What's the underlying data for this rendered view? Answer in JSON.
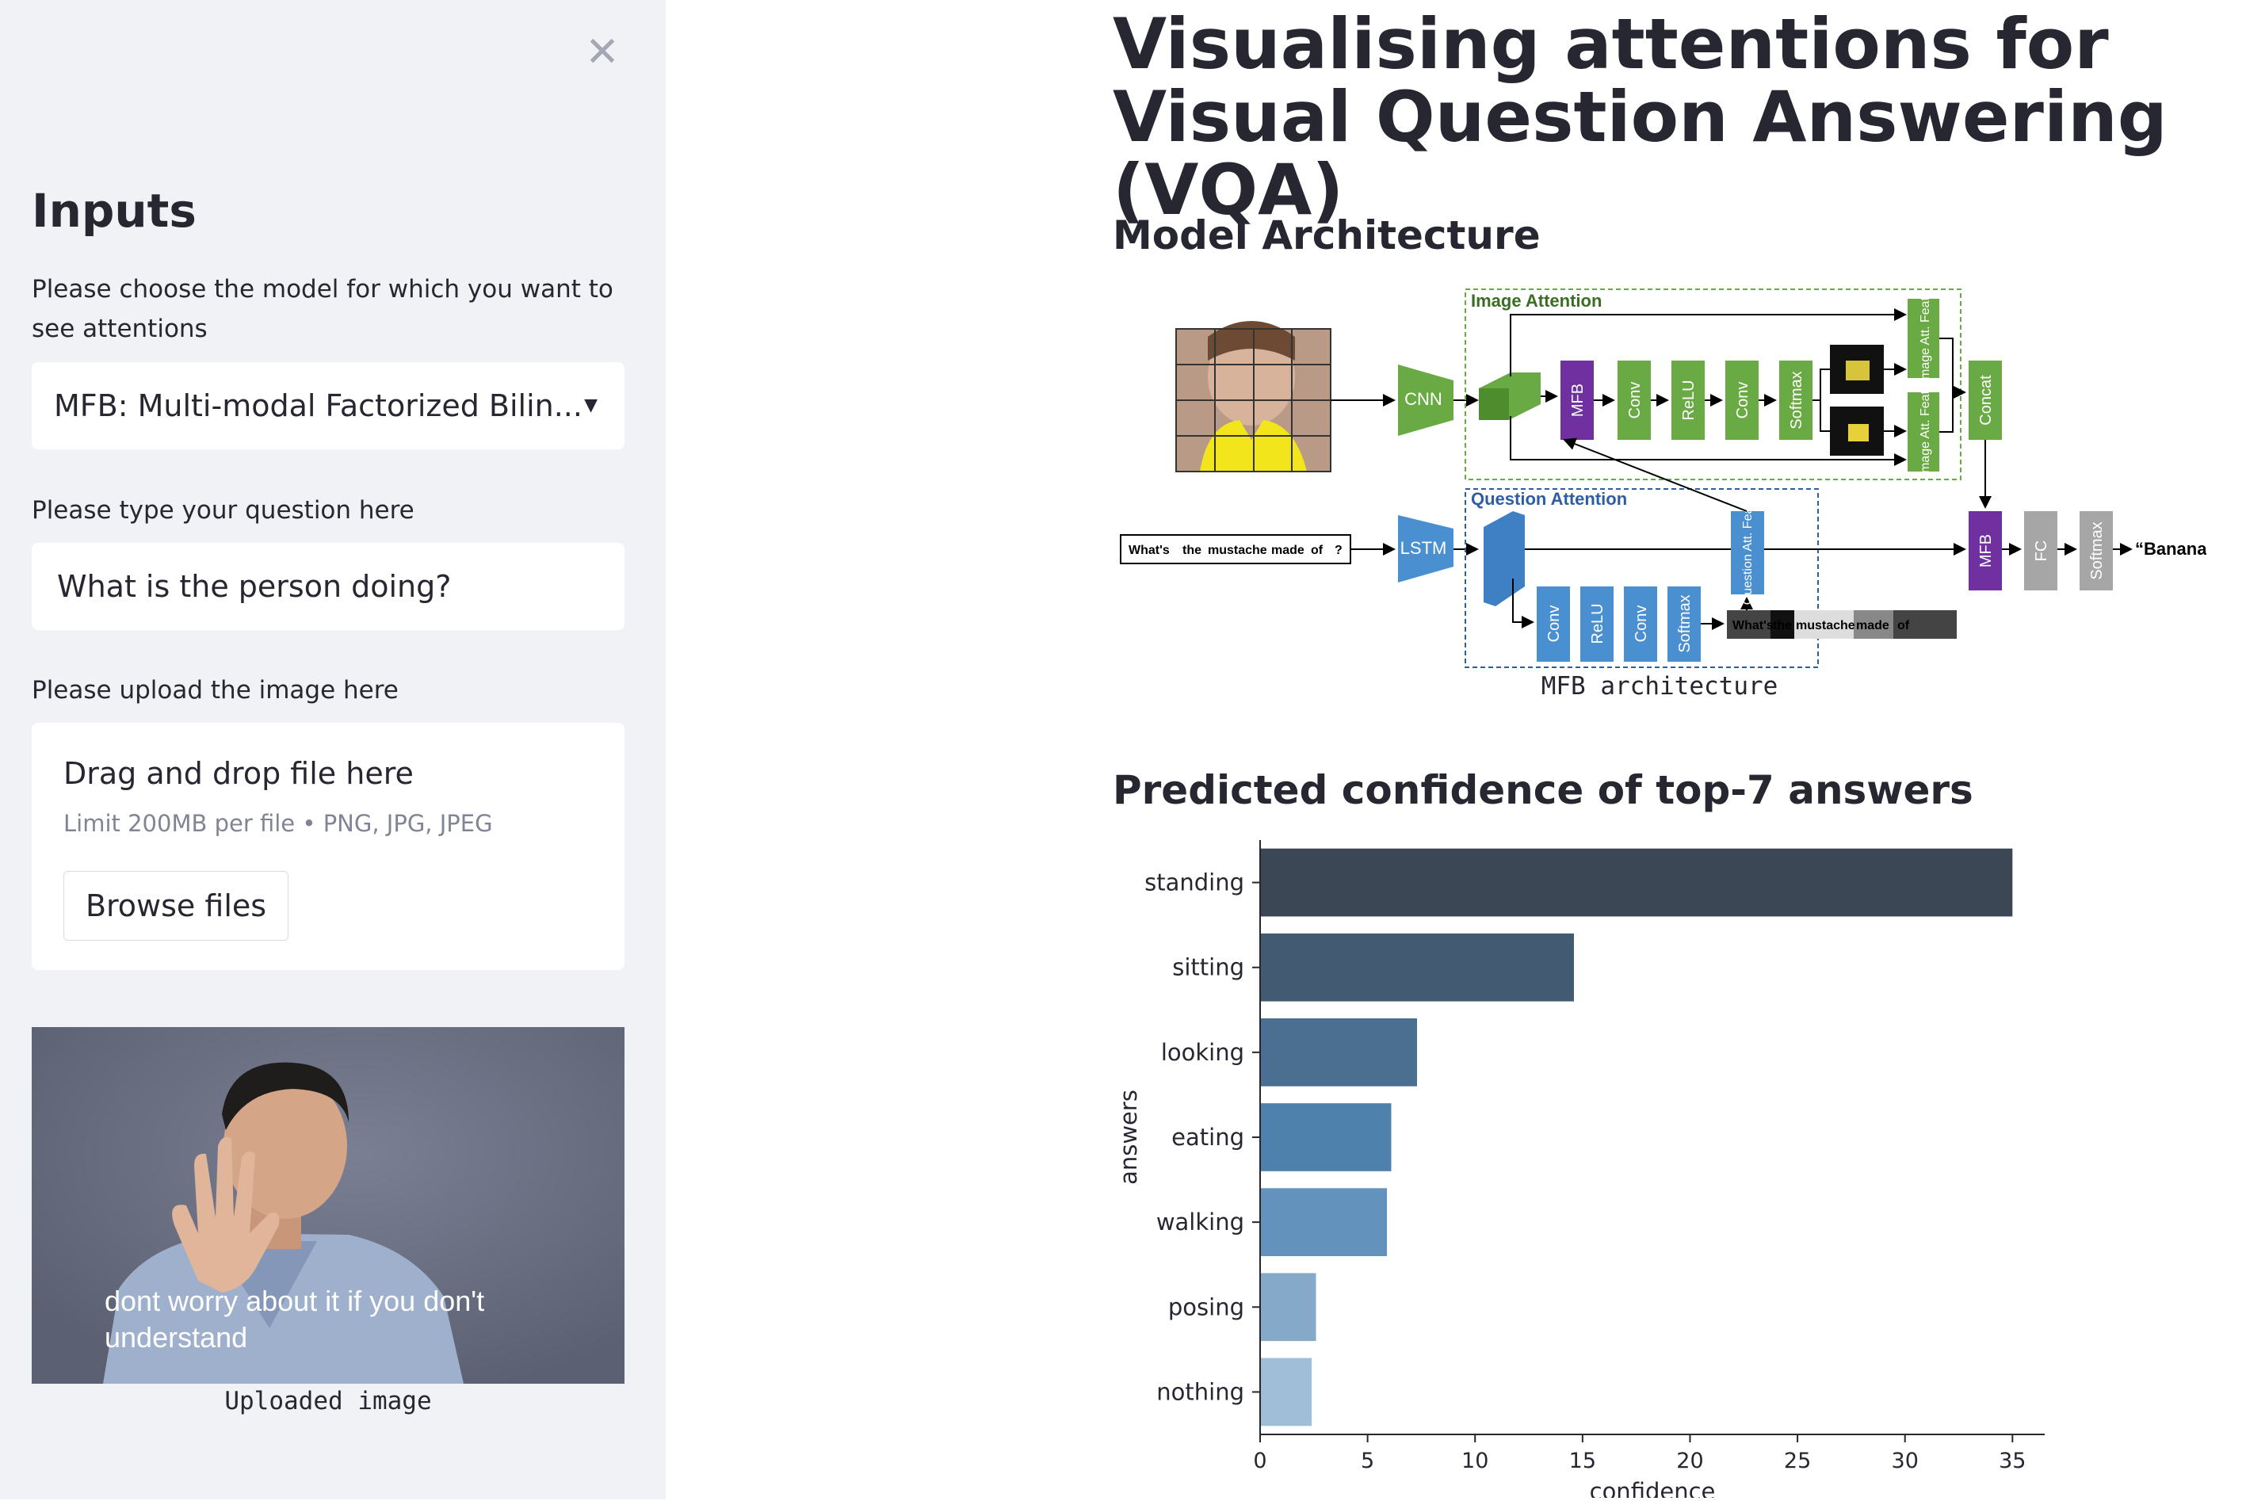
{
  "sidebar": {
    "close_icon": "close-icon",
    "heading": "Inputs",
    "model_label": "Please choose the model for which you want to see attentions",
    "model_value": "MFB: Multi-modal Factorized Bilin...",
    "question_label": "Please type your question here",
    "question_value": "What is the person doing?",
    "upload_label": "Please upload the image here",
    "uploader": {
      "title": "Drag and drop file here",
      "limit": "Limit 200MB per file • PNG, JPG, JPEG",
      "browse_label": "Browse files"
    },
    "image_subtitle": "dont worry about it if you don't understand",
    "image_caption": "Uploaded image"
  },
  "main": {
    "title": "Visualising attentions for Visual Question Answering (VQA)",
    "arch_heading": "Model Architecture",
    "arch_caption": "MFB architecture",
    "chart_heading": "Predicted confidence of top-7 answers"
  },
  "diagram": {
    "image_attention": "Image Attention",
    "question_attention": "Question Attention",
    "cnn": "CNN",
    "lstm": "LSTM",
    "mfb": "MFB",
    "conv": "Conv",
    "relu": "ReLU",
    "softmax": "Softmax",
    "image_att_feat": "Image Att. Feat.",
    "question_att_feat": "Question Att. Feat.",
    "concat": "Concat",
    "fc": "FC",
    "answer": "“Banana”",
    "question_words": [
      "What's",
      "the",
      "mustache",
      "made",
      "of",
      "?"
    ],
    "att_words": [
      "What's",
      "the",
      "mustache",
      "made",
      "of"
    ]
  },
  "chart_data": {
    "type": "bar",
    "orientation": "horizontal",
    "categories": [
      "standing",
      "sitting",
      "looking",
      "eating",
      "walking",
      "posing",
      "nothing"
    ],
    "values": [
      35,
      14.6,
      7.3,
      6.1,
      5.9,
      2.6,
      2.4
    ],
    "xlabel": "confidence",
    "ylabel": "answers",
    "xlim": [
      0,
      36.5
    ],
    "xticks": [
      0,
      5,
      10,
      15,
      20,
      25,
      30,
      35
    ],
    "colors": [
      "#3b4754",
      "#435a73",
      "#4a6f91",
      "#4f81ad",
      "#6393bd",
      "#85a9c9",
      "#a1bed8"
    ],
    "grid": false
  }
}
